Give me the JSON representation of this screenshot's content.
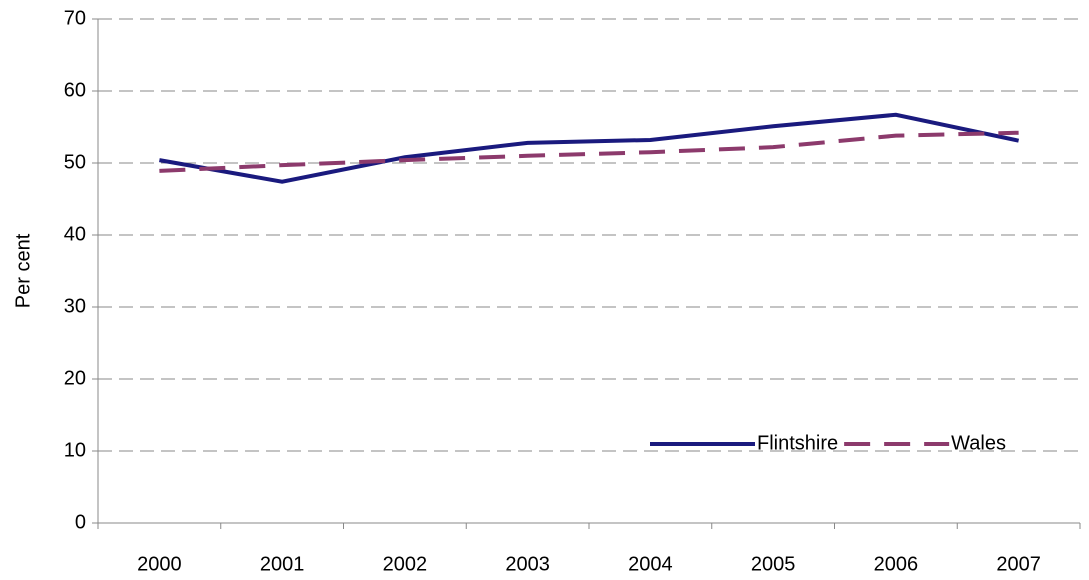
{
  "chart_data": {
    "type": "line",
    "y_label": "Per cent",
    "categories": [
      "2000",
      "2001",
      "2002",
      "2003",
      "2004",
      "2005",
      "2006",
      "2007"
    ],
    "series": [
      {
        "name": "Flintshire",
        "color": "#1a1a7e",
        "style": "solid",
        "values": [
          50.4,
          47.4,
          50.8,
          52.8,
          53.2,
          55.1,
          56.7,
          53.1
        ]
      },
      {
        "name": "Wales",
        "color": "#8c3a6c",
        "style": "dashed",
        "values": [
          48.9,
          49.7,
          50.4,
          51.0,
          51.5,
          52.2,
          53.8,
          54.2
        ]
      }
    ],
    "ylim": [
      0,
      70
    ],
    "yticks": [
      0,
      10,
      20,
      30,
      40,
      50,
      60,
      70
    ],
    "grid": true,
    "legend": "lower right"
  }
}
